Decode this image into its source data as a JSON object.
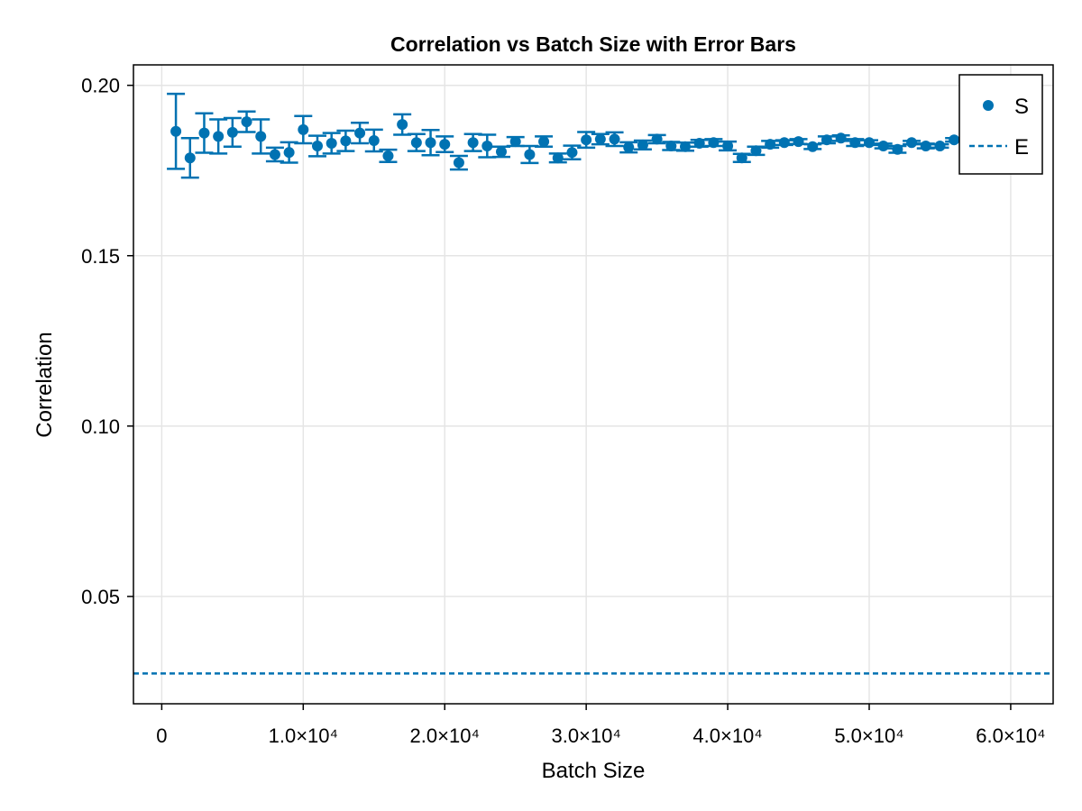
{
  "chart_data": {
    "type": "scatter",
    "title": "Correlation vs Batch Size with Error Bars",
    "xlabel": "Batch Size",
    "ylabel": "Correlation",
    "xlim": [
      -2000,
      63000
    ],
    "ylim": [
      0.0185,
      0.206
    ],
    "x_ticks": [
      {
        "value": 0,
        "label": "0"
      },
      {
        "value": 10000,
        "label": "1.0×10⁴"
      },
      {
        "value": 20000,
        "label": "2.0×10⁴"
      },
      {
        "value": 30000,
        "label": "3.0×10⁴"
      },
      {
        "value": 40000,
        "label": "4.0×10⁴"
      },
      {
        "value": 50000,
        "label": "5.0×10⁴"
      },
      {
        "value": 60000,
        "label": "6.0×10⁴"
      }
    ],
    "y_ticks": [
      {
        "value": 0.05,
        "label": "0.05"
      },
      {
        "value": 0.1,
        "label": "0.10"
      },
      {
        "value": 0.15,
        "label": "0.15"
      },
      {
        "value": 0.2,
        "label": "0.20"
      }
    ],
    "grid": true,
    "legend_position": "top-right",
    "colors": {
      "series": "#0072b2",
      "grid": "#e5e5e5",
      "frame": "#000000"
    },
    "series": [
      {
        "name": "S",
        "kind": "scatter-errorbar",
        "x": [
          1000,
          2000,
          3000,
          4000,
          5000,
          6000,
          7000,
          8000,
          9000,
          10000,
          11000,
          12000,
          13000,
          14000,
          15000,
          16000,
          17000,
          18000,
          19000,
          20000,
          21000,
          22000,
          23000,
          24000,
          25000,
          26000,
          27000,
          28000,
          29000,
          30000,
          31000,
          32000,
          33000,
          34000,
          35000,
          36000,
          37000,
          38000,
          39000,
          40000,
          41000,
          42000,
          43000,
          44000,
          45000,
          46000,
          47000,
          48000,
          49000,
          50000,
          51000,
          52000,
          53000,
          54000,
          55000,
          56000
        ],
        "y": [
          0.1865,
          0.1787,
          0.186,
          0.185,
          0.1862,
          0.1893,
          0.185,
          0.1797,
          0.1803,
          0.187,
          0.1822,
          0.183,
          0.1837,
          0.186,
          0.1838,
          0.1793,
          0.1885,
          0.1832,
          0.1832,
          0.1827,
          0.1773,
          0.1832,
          0.1822,
          0.1805,
          0.1835,
          0.1797,
          0.1835,
          0.1787,
          0.1803,
          0.184,
          0.1842,
          0.1842,
          0.1818,
          0.1825,
          0.1842,
          0.1822,
          0.182,
          0.183,
          0.1832,
          0.1822,
          0.1787,
          0.1808,
          0.1827,
          0.1832,
          0.1835,
          0.182,
          0.184,
          0.1845,
          0.1832,
          0.1832,
          0.1822,
          0.1812,
          0.1832,
          0.1822,
          0.1822,
          0.184
        ],
        "yerr": [
          0.011,
          0.0058,
          0.0058,
          0.005,
          0.0042,
          0.003,
          0.005,
          0.002,
          0.003,
          0.004,
          0.003,
          0.003,
          0.003,
          0.003,
          0.0032,
          0.0018,
          0.003,
          0.0025,
          0.0037,
          0.0023,
          0.002,
          0.0025,
          0.0033,
          0.0015,
          0.0013,
          0.0025,
          0.0015,
          0.0013,
          0.002,
          0.0023,
          0.0015,
          0.002,
          0.0015,
          0.0013,
          0.0012,
          0.0012,
          0.0012,
          0.001,
          0.001,
          0.0013,
          0.0012,
          0.0012,
          0.001,
          0.0007,
          0.0007,
          0.0007,
          0.001,
          0.0008,
          0.001,
          0.0007,
          0.0007,
          0.001,
          0.0005,
          0.0007,
          0.0005,
          0.0005
        ]
      },
      {
        "name": "E",
        "kind": "hline-dashed",
        "y": 0.0274
      }
    ]
  }
}
